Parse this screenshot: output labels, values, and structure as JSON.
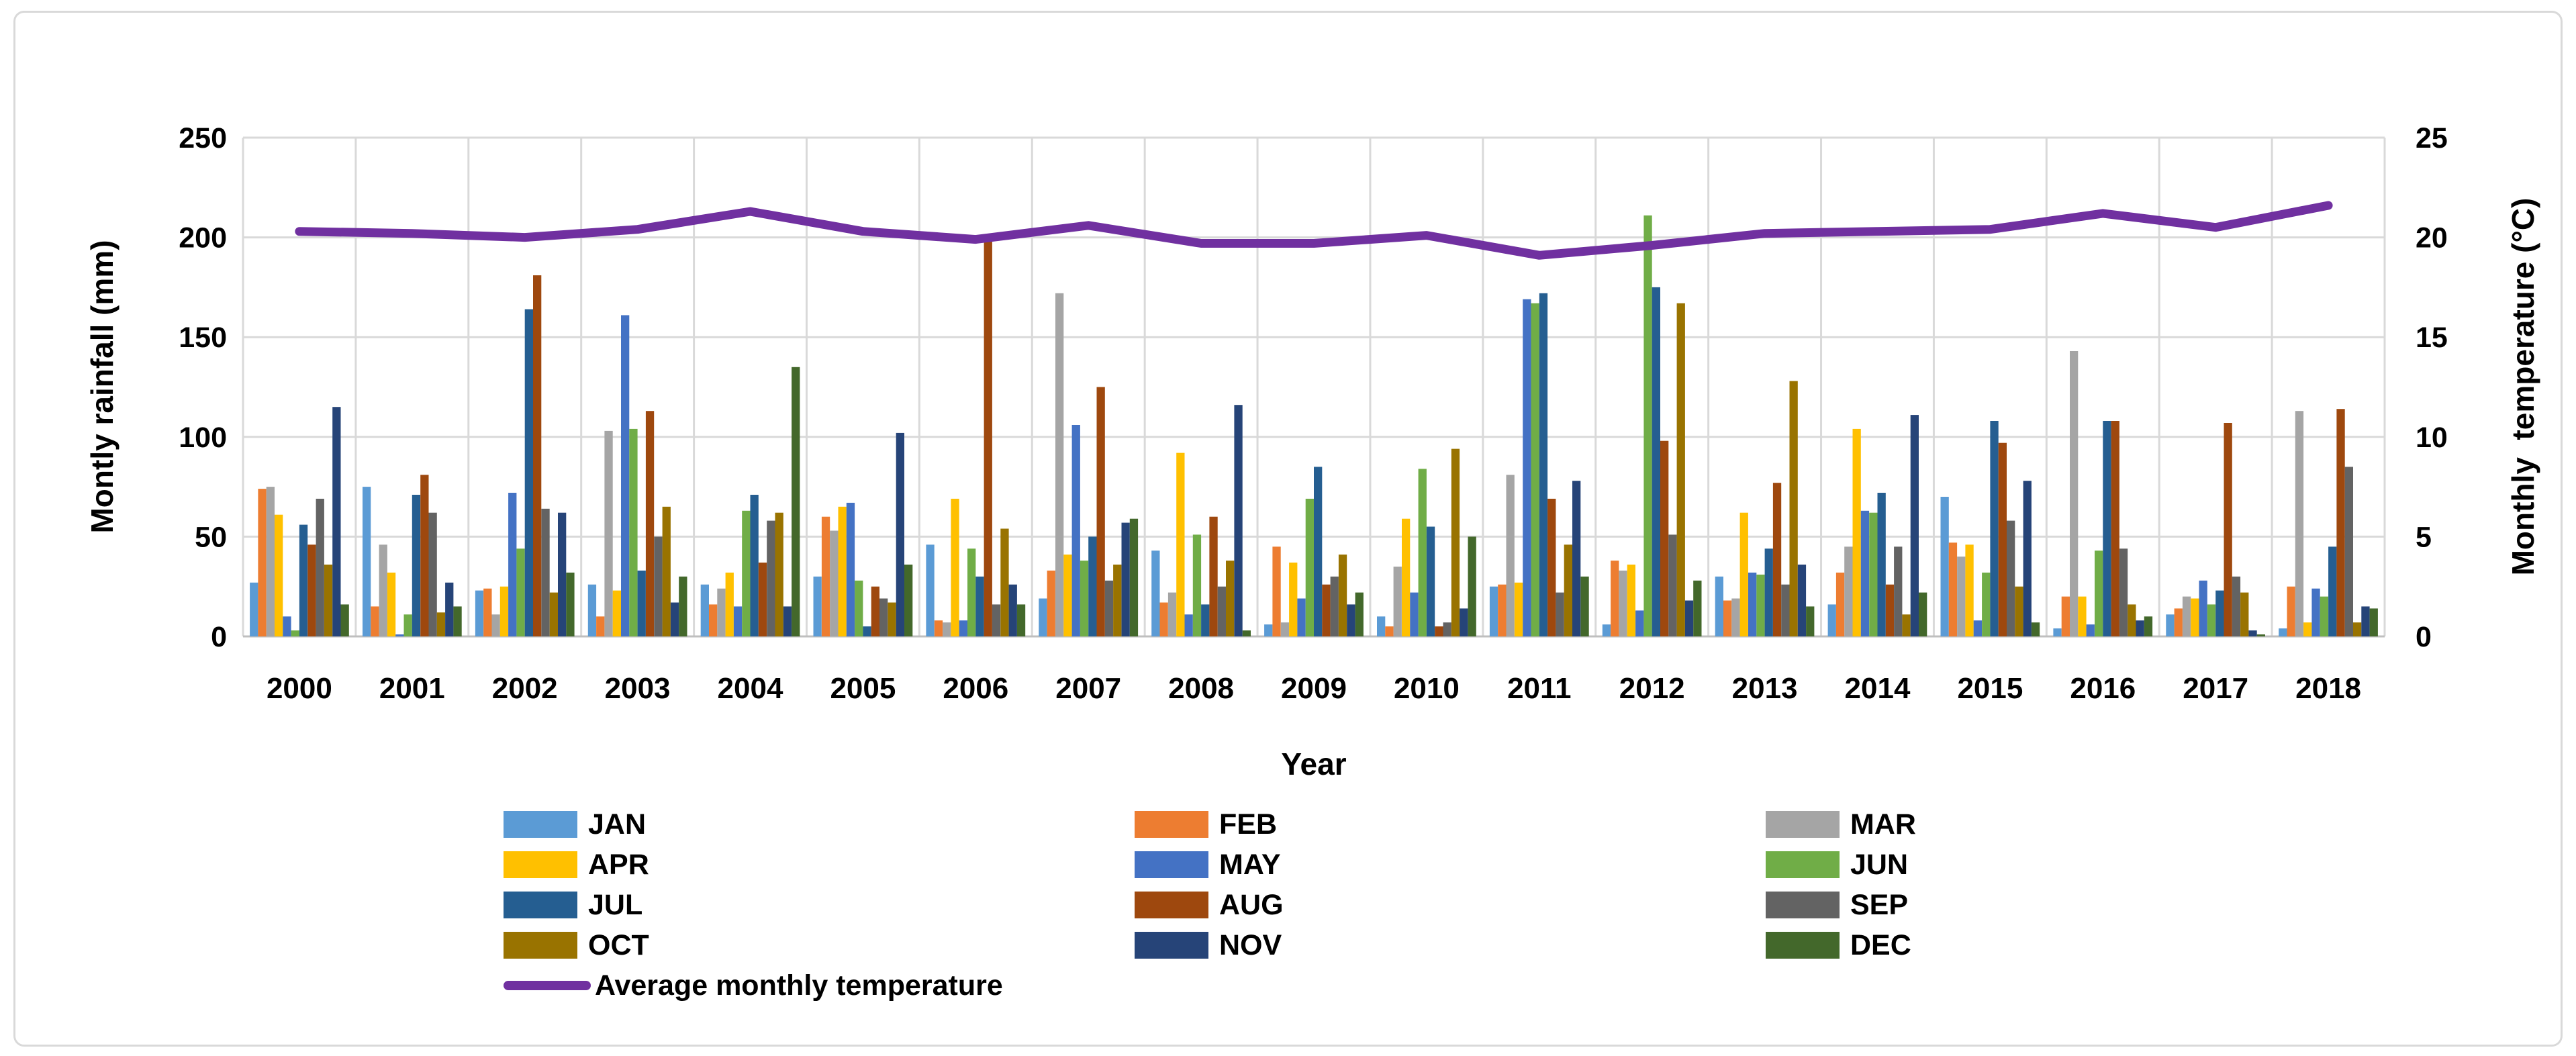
{
  "style": {
    "background": "#ffffff",
    "frame_border": "#d9d9d9",
    "grid_color": "#d9d9d9",
    "axis_line_color": "#bfbfbf",
    "text_color": "#000000"
  },
  "chart_data": {
    "type": "bar+line",
    "grid": true,
    "legend_position": "bottom",
    "x_axis": {
      "label": "Year",
      "categories": [
        "2000",
        "2001",
        "2002",
        "2003",
        "2004",
        "2005",
        "2006",
        "2007",
        "2008",
        "2009",
        "2010",
        "2011",
        "2012",
        "2013",
        "2014",
        "2015",
        "2016",
        "2017",
        "2018"
      ]
    },
    "left_axis": {
      "label": "Montly rainfall (mm)",
      "min": 0,
      "max": 250,
      "step": 50
    },
    "right_axis": {
      "label": "Monthly  temperature (°C)",
      "min": 0,
      "max": 25,
      "step": 5
    },
    "series": [
      {
        "name": "JAN",
        "color": "#5b9bd5",
        "values": [
          27,
          75,
          23,
          26,
          26,
          30,
          46,
          19,
          43,
          6,
          10,
          25,
          6,
          30,
          16,
          70,
          4,
          11,
          4
        ]
      },
      {
        "name": "FEB",
        "color": "#ed7d31",
        "values": [
          74,
          15,
          24,
          10,
          16,
          60,
          8,
          33,
          17,
          45,
          5,
          26,
          38,
          18,
          32,
          47,
          20,
          14,
          25
        ]
      },
      {
        "name": "MAR",
        "color": "#a5a5a5",
        "values": [
          75,
          46,
          11,
          103,
          24,
          53,
          7,
          172,
          22,
          7,
          35,
          81,
          33,
          19,
          45,
          40,
          143,
          20,
          113
        ]
      },
      {
        "name": "APR",
        "color": "#ffc000",
        "values": [
          61,
          32,
          25,
          23,
          32,
          65,
          69,
          41,
          92,
          37,
          59,
          27,
          36,
          62,
          104,
          46,
          20,
          19,
          7
        ]
      },
      {
        "name": "MAY",
        "color": "#4472c4",
        "values": [
          10,
          1,
          72,
          161,
          15,
          67,
          8,
          106,
          11,
          19,
          22,
          169,
          13,
          32,
          63,
          8,
          6,
          28,
          24
        ]
      },
      {
        "name": "JUN",
        "color": "#70ad47",
        "values": [
          3,
          11,
          44,
          104,
          63,
          28,
          44,
          38,
          51,
          69,
          84,
          167,
          211,
          31,
          62,
          32,
          43,
          16,
          20
        ]
      },
      {
        "name": "JUL",
        "color": "#255e91",
        "values": [
          56,
          71,
          164,
          33,
          71,
          5,
          30,
          50,
          16,
          85,
          55,
          172,
          175,
          44,
          72,
          108,
          108,
          23,
          45
        ]
      },
      {
        "name": "AUG",
        "color": "#9e480e",
        "values": [
          46,
          81,
          181,
          113,
          37,
          25,
          199,
          125,
          60,
          26,
          5,
          69,
          98,
          77,
          26,
          97,
          108,
          107,
          114
        ]
      },
      {
        "name": "SEP",
        "color": "#636363",
        "values": [
          69,
          62,
          64,
          50,
          58,
          19,
          16,
          28,
          25,
          30,
          7,
          22,
          51,
          26,
          45,
          58,
          44,
          30,
          85
        ]
      },
      {
        "name": "OCT",
        "color": "#997300",
        "values": [
          36,
          12,
          22,
          65,
          62,
          17,
          54,
          36,
          38,
          41,
          94,
          46,
          167,
          128,
          11,
          25,
          16,
          22,
          7
        ]
      },
      {
        "name": "NOV",
        "color": "#264478",
        "values": [
          115,
          27,
          62,
          17,
          15,
          102,
          26,
          57,
          116,
          16,
          14,
          78,
          18,
          36,
          111,
          78,
          8,
          3,
          15
        ]
      },
      {
        "name": "DEC",
        "color": "#43682b",
        "values": [
          16,
          15,
          32,
          30,
          135,
          36,
          16,
          59,
          3,
          22,
          50,
          30,
          28,
          15,
          22,
          7,
          10,
          1,
          14
        ]
      }
    ],
    "line_series": {
      "name": "Average monthly temperature",
      "color": "#7030a0",
      "axis": "right",
      "values": [
        20.3,
        20.2,
        20.0,
        20.4,
        21.3,
        20.3,
        19.9,
        20.6,
        19.7,
        19.7,
        20.1,
        19.1,
        19.6,
        20.2,
        20.3,
        20.4,
        21.2,
        20.5,
        21.6
      ]
    }
  }
}
